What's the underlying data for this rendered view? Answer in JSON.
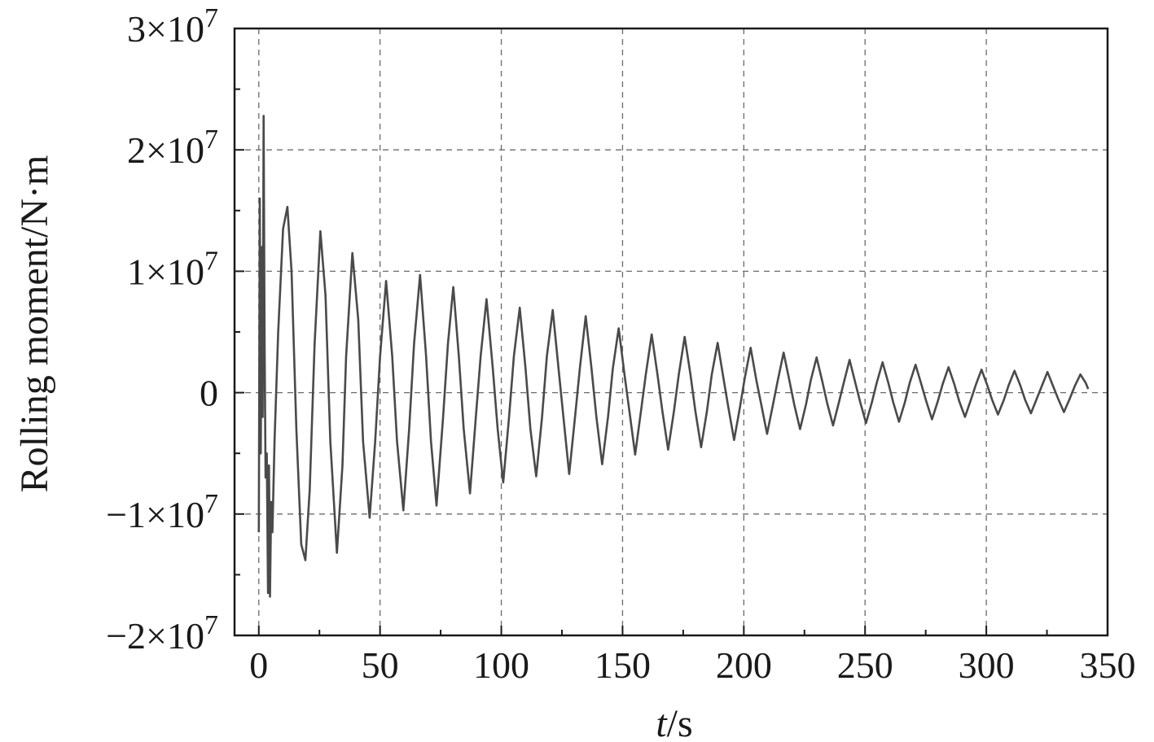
{
  "chart_data": {
    "type": "line",
    "xlabel_italic": "t",
    "xlabel_unit": "/s",
    "ylabel": "Rolling moment/N·m",
    "xlim": [
      -10,
      350
    ],
    "ylim": [
      -20000000,
      30000000
    ],
    "grid": true,
    "x_ticks": [
      {
        "value": 0,
        "label": "0"
      },
      {
        "value": 50,
        "label": "50"
      },
      {
        "value": 100,
        "label": "100"
      },
      {
        "value": 150,
        "label": "150"
      },
      {
        "value": 200,
        "label": "200"
      },
      {
        "value": 250,
        "label": "250"
      },
      {
        "value": 300,
        "label": "300"
      },
      {
        "value": 350,
        "label": "350"
      }
    ],
    "y_ticks": [
      {
        "value": 30000000,
        "label": "3×10",
        "exp": "7"
      },
      {
        "value": 20000000,
        "label": "2×10",
        "exp": "7"
      },
      {
        "value": 10000000,
        "label": "1×10",
        "exp": "7"
      },
      {
        "value": 0,
        "label": "0",
        "exp": ""
      },
      {
        "value": -10000000,
        "label": "−1×10",
        "exp": "7"
      },
      {
        "value": -20000000,
        "label": "−2×10",
        "exp": "7"
      }
    ],
    "series": [
      {
        "color": "#4a4a4a",
        "points": [
          [
            0.0,
            -11500000
          ],
          [
            0.4,
            16000000
          ],
          [
            0.8,
            -5000000
          ],
          [
            1.2,
            12000000
          ],
          [
            1.6,
            -2000000
          ],
          [
            2.0,
            22800000
          ],
          [
            2.4,
            4000000
          ],
          [
            2.8,
            -7000000
          ],
          [
            3.3,
            -5000000
          ],
          [
            3.8,
            -16500000
          ],
          [
            4.2,
            -6000000
          ],
          [
            4.6,
            -16800000
          ],
          [
            5.1,
            -9000000
          ],
          [
            5.6,
            -11500000
          ],
          [
            6.5,
            -4000000
          ],
          [
            8.0,
            5000000
          ],
          [
            10.0,
            13500000
          ],
          [
            11.8,
            15300000
          ],
          [
            13.5,
            10000000
          ],
          [
            15.5,
            -3000000
          ],
          [
            17.5,
            -12500000
          ],
          [
            19.2,
            -13800000
          ],
          [
            21.0,
            -8000000
          ],
          [
            23.0,
            4000000
          ],
          [
            25.4,
            13300000
          ],
          [
            27.5,
            8000000
          ],
          [
            29.5,
            -4000000
          ],
          [
            32.2,
            -13200000
          ],
          [
            34.5,
            -6000000
          ],
          [
            36.0,
            3000000
          ],
          [
            38.6,
            11500000
          ],
          [
            41.0,
            6000000
          ],
          [
            43.0,
            -4000000
          ],
          [
            45.7,
            -10300000
          ],
          [
            48.0,
            -4000000
          ],
          [
            50.0,
            3000000
          ],
          [
            52.5,
            9200000
          ],
          [
            55.0,
            3000000
          ],
          [
            57.0,
            -4000000
          ],
          [
            59.6,
            -9700000
          ],
          [
            62.0,
            -3000000
          ],
          [
            64.0,
            4000000
          ],
          [
            66.5,
            9700000
          ],
          [
            69.0,
            3000000
          ],
          [
            71.0,
            -4000000
          ],
          [
            73.3,
            -9300000
          ],
          [
            76.0,
            -2000000
          ],
          [
            78.0,
            4000000
          ],
          [
            80.2,
            8700000
          ],
          [
            82.5,
            3000000
          ],
          [
            84.5,
            -3000000
          ],
          [
            87.1,
            -8300000
          ],
          [
            89.5,
            -2000000
          ],
          [
            91.5,
            3000000
          ],
          [
            93.9,
            7700000
          ],
          [
            96.5,
            2000000
          ],
          [
            98.5,
            -3000000
          ],
          [
            100.8,
            -7400000
          ],
          [
            103.2,
            -2000000
          ],
          [
            105.2,
            3000000
          ],
          [
            107.6,
            7000000
          ],
          [
            110.0,
            2000000
          ],
          [
            112.0,
            -3000000
          ],
          [
            114.4,
            -6900000
          ],
          [
            116.8,
            -2000000
          ],
          [
            118.8,
            3000000
          ],
          [
            121.2,
            6800000
          ],
          [
            123.6,
            2000000
          ],
          [
            125.6,
            -2000000
          ],
          [
            128.0,
            -6700000
          ],
          [
            130.4,
            -2000000
          ],
          [
            132.4,
            2000000
          ],
          [
            134.8,
            6300000
          ],
          [
            137.2,
            2000000
          ],
          [
            139.2,
            -2000000
          ],
          [
            141.6,
            -5900000
          ],
          [
            144.0,
            -2000000
          ],
          [
            146.0,
            2000000
          ],
          [
            148.4,
            5300000
          ],
          [
            150.8,
            1500000
          ],
          [
            152.8,
            -1500000
          ],
          [
            155.2,
            -5100000
          ],
          [
            157.6,
            -1500000
          ],
          [
            159.6,
            1500000
          ],
          [
            162.0,
            4800000
          ],
          [
            164.4,
            1500000
          ],
          [
            166.4,
            -1500000
          ],
          [
            168.8,
            -4700000
          ],
          [
            171.2,
            -1500000
          ],
          [
            173.2,
            1500000
          ],
          [
            175.6,
            4600000
          ],
          [
            178.0,
            1500000
          ],
          [
            180.0,
            -1500000
          ],
          [
            182.4,
            -4500000
          ],
          [
            184.8,
            -1500000
          ],
          [
            186.8,
            1500000
          ],
          [
            189.2,
            4100000
          ],
          [
            191.6,
            1200000
          ],
          [
            193.6,
            -1200000
          ],
          [
            196.0,
            -3900000
          ],
          [
            198.4,
            -1200000
          ],
          [
            200.4,
            1200000
          ],
          [
            202.8,
            3700000
          ],
          [
            205.2,
            1000000
          ],
          [
            207.2,
            -1000000
          ],
          [
            209.6,
            -3400000
          ],
          [
            212.0,
            -1000000
          ],
          [
            214.0,
            1000000
          ],
          [
            216.4,
            3300000
          ],
          [
            218.8,
            1000000
          ],
          [
            220.8,
            -1000000
          ],
          [
            223.2,
            -3000000
          ],
          [
            225.6,
            -1000000
          ],
          [
            227.6,
            1000000
          ],
          [
            230.0,
            2900000
          ],
          [
            232.4,
            900000
          ],
          [
            234.4,
            -900000
          ],
          [
            236.8,
            -2700000
          ],
          [
            239.2,
            -800000
          ],
          [
            241.2,
            800000
          ],
          [
            243.6,
            2700000
          ],
          [
            246.0,
            800000
          ],
          [
            248.0,
            -800000
          ],
          [
            250.4,
            -2500000
          ],
          [
            252.8,
            -800000
          ],
          [
            254.8,
            800000
          ],
          [
            257.2,
            2500000
          ],
          [
            259.6,
            800000
          ],
          [
            261.6,
            -800000
          ],
          [
            264.0,
            -2400000
          ],
          [
            266.4,
            -800000
          ],
          [
            268.4,
            800000
          ],
          [
            270.8,
            2300000
          ],
          [
            273.2,
            700000
          ],
          [
            275.2,
            -700000
          ],
          [
            277.6,
            -2200000
          ],
          [
            280.0,
            -700000
          ],
          [
            282.0,
            700000
          ],
          [
            284.4,
            2100000
          ],
          [
            286.8,
            700000
          ],
          [
            288.8,
            -700000
          ],
          [
            291.2,
            -2000000
          ],
          [
            293.6,
            -600000
          ],
          [
            295.6,
            600000
          ],
          [
            298.0,
            1900000
          ],
          [
            300.4,
            600000
          ],
          [
            302.4,
            -600000
          ],
          [
            304.8,
            -1800000
          ],
          [
            307.2,
            -600000
          ],
          [
            309.2,
            600000
          ],
          [
            311.6,
            1800000
          ],
          [
            314.0,
            600000
          ],
          [
            316.0,
            -600000
          ],
          [
            318.4,
            -1700000
          ],
          [
            320.8,
            -500000
          ],
          [
            322.8,
            500000
          ],
          [
            325.2,
            1700000
          ],
          [
            327.6,
            500000
          ],
          [
            329.6,
            -500000
          ],
          [
            332.0,
            -1600000
          ],
          [
            334.4,
            -500000
          ],
          [
            336.4,
            500000
          ],
          [
            338.8,
            1500000
          ],
          [
            341.0,
            800000
          ],
          [
            342.0,
            300000
          ]
        ]
      }
    ]
  }
}
